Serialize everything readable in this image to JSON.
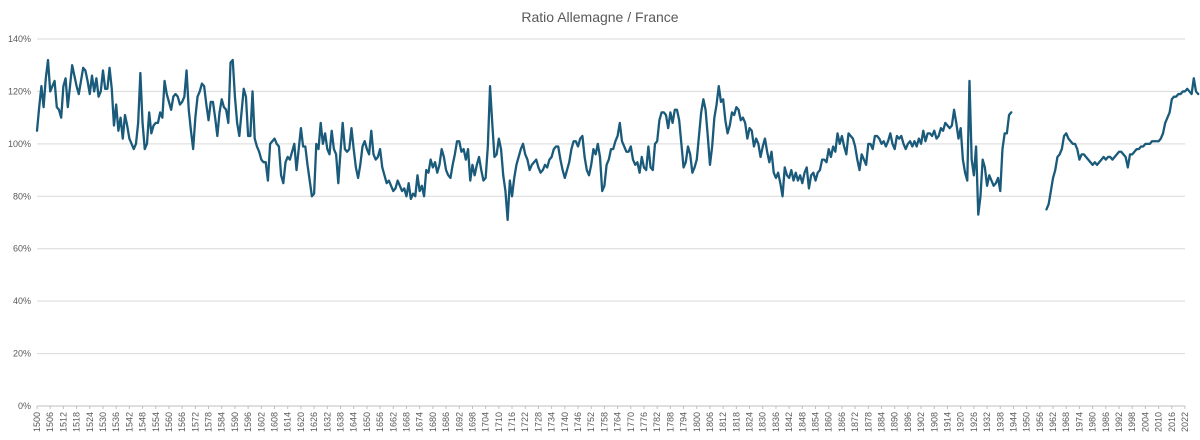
{
  "chart_data": {
    "type": "line",
    "title": "Ratio Allemagne / France",
    "xlabel": "",
    "ylabel": "",
    "ylim": [
      0,
      140
    ],
    "y_ticks": [
      "0%",
      "20%",
      "40%",
      "60%",
      "80%",
      "100%",
      "120%",
      "140%"
    ],
    "x_ticks": [
      "1500",
      "1506",
      "1512",
      "1518",
      "1524",
      "1530",
      "1536",
      "1542",
      "1548",
      "1554",
      "1560",
      "1566",
      "1572",
      "1578",
      "1584",
      "1590",
      "1596",
      "1602",
      "1608",
      "1614",
      "1620",
      "1626",
      "1632",
      "1638",
      "1644",
      "1650",
      "1656",
      "1662",
      "1668",
      "1674",
      "1680",
      "1686",
      "1692",
      "1698",
      "1704",
      "1710",
      "1716",
      "1722",
      "1728",
      "1734",
      "1740",
      "1746",
      "1752",
      "1758",
      "1764",
      "1770",
      "1776",
      "1782",
      "1788",
      "1794",
      "1800",
      "1806",
      "1812",
      "1818",
      "1824",
      "1830",
      "1836",
      "1842",
      "1848",
      "1854",
      "1860",
      "1866",
      "1872",
      "1878",
      "1884",
      "1890",
      "1896",
      "1902",
      "1908",
      "1914",
      "1920",
      "1926",
      "1932",
      "1938",
      "1944",
      "1950",
      "1956",
      "1962",
      "1968",
      "1974",
      "1980",
      "1986",
      "1992",
      "1998",
      "2004",
      "2010",
      "2016",
      "2022"
    ],
    "grid": true,
    "legend": "none",
    "colors": {
      "series": "#1a5a7a",
      "grid": "#d9d9d9",
      "text": "#595959"
    },
    "series": [
      {
        "name": "Ratio Allemagne / France",
        "x_start": 1500,
        "x_step": 1,
        "values": [
          105,
          114,
          122,
          114,
          125,
          132,
          120,
          122,
          124,
          114,
          113,
          110,
          122,
          125,
          114,
          122,
          130,
          126,
          122,
          119,
          124,
          129,
          128,
          124,
          119,
          126,
          120,
          125,
          118,
          120,
          128,
          121,
          121,
          129,
          121,
          107,
          115,
          105,
          110,
          102,
          111,
          107,
          102,
          100,
          98,
          100,
          108,
          127,
          108,
          98,
          100,
          112,
          104,
          107,
          108,
          108,
          112,
          110,
          124,
          119,
          116,
          113,
          118,
          119,
          118,
          115,
          116,
          118,
          128,
          113,
          105,
          98,
          110,
          118,
          120,
          123,
          122,
          115,
          109,
          116,
          116,
          110,
          103,
          112,
          117,
          114,
          113,
          108,
          131,
          132,
          118,
          108,
          103,
          112,
          121,
          118,
          103,
          103,
          120,
          102,
          99,
          97,
          94,
          93,
          93,
          86,
          100,
          101,
          102,
          100,
          99,
          88,
          85,
          93,
          95,
          94,
          97,
          100,
          90,
          98,
          106,
          99,
          99,
          92,
          86,
          80,
          81,
          100,
          98,
          108,
          100,
          104,
          98,
          96,
          105,
          98,
          96,
          85,
          97,
          108,
          98,
          97,
          98,
          106,
          98,
          91,
          87,
          92,
          99,
          101,
          98,
          96,
          105,
          96,
          94,
          95,
          98,
          91,
          88,
          85,
          86,
          84,
          82,
          83,
          86,
          84,
          82,
          83,
          80,
          85,
          79,
          81,
          80,
          88,
          82,
          84,
          80,
          90,
          89,
          94,
          91,
          93,
          89,
          92,
          98,
          95,
          90,
          88,
          87,
          92,
          96,
          101,
          101,
          97,
          98,
          94,
          98,
          86,
          92,
          88,
          92,
          95,
          90,
          86,
          87,
          99,
          122,
          108,
          95,
          96,
          102,
          98,
          88,
          82,
          71,
          86,
          80,
          87,
          92,
          95,
          98,
          100,
          96,
          94,
          90,
          92,
          93,
          94,
          91,
          89,
          90,
          92,
          91,
          94,
          95,
          98,
          99,
          99,
          94,
          90,
          87,
          90,
          93,
          98,
          101,
          101,
          99,
          102,
          103,
          95,
          90,
          88,
          92,
          98,
          96,
          100,
          95,
          82,
          84,
          92,
          94,
          98,
          98,
          101,
          103,
          108,
          101,
          99,
          97,
          97,
          99,
          94,
          92,
          93,
          89,
          95,
          91,
          90,
          99,
          91,
          90,
          100,
          101,
          109,
          112,
          112,
          111,
          106,
          112,
          108,
          113,
          113,
          109,
          100,
          91,
          93,
          99,
          96,
          89,
          91,
          94,
          103,
          112,
          117,
          113,
          103,
          92,
          99,
          110,
          115,
          122,
          116,
          117,
          109,
          104,
          107,
          112,
          111,
          114,
          113,
          109,
          110,
          108,
          102,
          106,
          105,
          99,
          102,
          100,
          95,
          99,
          102,
          97,
          93,
          97,
          89,
          87,
          89,
          85,
          80,
          91,
          88,
          87,
          90,
          86,
          89,
          86,
          88,
          85,
          89,
          91,
          83,
          88,
          89,
          86,
          89,
          90,
          94,
          94,
          93,
          98,
          95,
          99,
          97,
          104,
          100,
          103,
          99,
          96,
          104,
          103,
          102,
          99,
          94,
          90,
          96,
          94,
          92,
          100,
          100,
          98,
          103,
          103,
          102,
          100,
          101,
          99,
          101,
          104,
          100,
          98,
          103,
          102,
          103,
          100,
          98,
          100,
          101,
          99,
          101,
          99,
          102,
          100,
          105,
          101,
          104,
          104,
          103,
          105,
          102,
          103,
          106,
          105,
          108,
          107,
          106,
          107,
          113,
          108,
          102,
          106,
          94,
          89,
          86,
          124,
          94,
          88,
          99,
          73,
          80,
          94,
          91,
          84,
          88,
          86,
          84,
          85,
          87,
          82,
          98,
          104,
          104,
          111,
          112,
          null,
          null,
          null,
          null,
          null,
          null,
          null,
          null,
          null,
          null,
          null,
          null,
          null,
          null,
          null,
          75,
          77,
          82,
          87,
          90,
          95,
          96,
          98,
          103,
          104,
          102,
          101,
          100,
          100,
          98,
          94,
          96,
          96,
          95,
          94,
          93,
          92,
          93,
          92,
          93,
          94,
          95,
          94,
          95,
          95,
          94,
          95,
          96,
          97,
          97,
          96,
          95,
          91,
          96,
          96,
          97,
          98,
          98,
          99,
          99,
          100,
          100,
          100,
          101,
          101,
          101,
          101,
          102,
          104,
          108,
          110,
          112,
          117,
          118,
          118,
          119,
          119,
          120,
          120,
          121,
          120,
          119,
          125,
          120,
          119
        ]
      }
    ]
  }
}
